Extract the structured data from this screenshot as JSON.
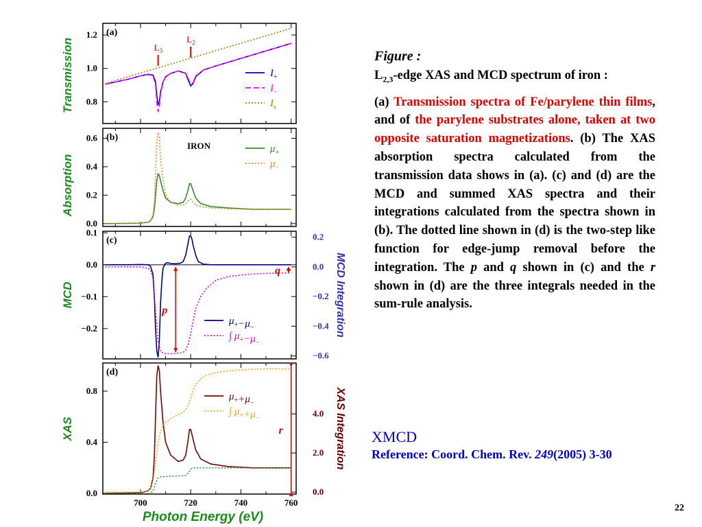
{
  "caption": {
    "figure_label": "Figure :",
    "subtitle_prefix": "L",
    "subtitle_sub": "2,3",
    "subtitle_text": "-edge XAS and MCD spectrum of iron :",
    "body": [
      {
        "text": "(a) ",
        "color": "black"
      },
      {
        "text": "Transmission spectra of Fe/parylene thin films",
        "color": "red"
      },
      {
        "text": ", and of ",
        "color": "black"
      },
      {
        "text": "the parylene substrates alone, taken at two opposite saturation magnetizations",
        "color": "red"
      },
      {
        "text": ". (b) The XAS absorption spectra calculated from the transmission data shows in (a). (c) and (d) are the MCD and summed XAS spectra and their integrations calculated from the spectra shown in (b). The dotted line shown in (d) is the two-step like function for edge-jump removal before the integration. The ",
        "color": "black"
      },
      {
        "text": "p",
        "color": "black",
        "italic": true
      },
      {
        "text": " and ",
        "color": "black"
      },
      {
        "text": "q",
        "color": "black",
        "italic": true
      },
      {
        "text": " shown in (c) and the ",
        "color": "black"
      },
      {
        "text": "r",
        "color": "black",
        "italic": true
      },
      {
        "text": " shown in (d) are the three integrals needed in the sum-rule analysis.",
        "color": "black"
      }
    ]
  },
  "xmcd": {
    "title": "XMCD",
    "ref_prefix": "Reference: Coord. Chem. Rev. ",
    "ref_volume": "249",
    "ref_suffix": "(2005) 3-30"
  },
  "page_number": "22",
  "colors": {
    "axis_label_green": "#1a8c1a",
    "integration_axis_blue": "#3333aa",
    "xas_integration_darkred": "#660000",
    "mu_plus_green": "#2e8b2e",
    "mu_minus_orange": "#ff7f24",
    "mcd_navy": "#000080",
    "mcd_int_magenta": "#dd00dd",
    "xas_darkred": "#7a0000",
    "xas_int_orange": "#ffa010",
    "step_green": "#2e8b57",
    "I_plus_blue": "#0000cc",
    "I_minus_magenta": "#ff00ff",
    "I_s_olive": "#8b8b00",
    "marker_red": "#e00000"
  },
  "chart_data": [
    {
      "panel": "(a)",
      "type": "line",
      "ylabel": "Transmission",
      "xlim": [
        685,
        762
      ],
      "ylim": [
        0.67,
        1.27
      ],
      "yticks": [
        0.8,
        1.0,
        1.2
      ],
      "ytick_labels": [
        "0.8",
        "1.0",
        "1.2"
      ],
      "annotations": [
        {
          "label": "L",
          "sub": "3",
          "x": 707
        },
        {
          "label": "L",
          "sub": "2",
          "x": 720
        }
      ],
      "series": [
        {
          "name": "I+",
          "name_main": "I",
          "name_sub": "+",
          "style": "solid",
          "color_key": "I_plus_blue",
          "x": [
            686,
            695,
            700,
            703,
            705,
            706,
            706.5,
            707,
            707.5,
            708,
            709,
            710,
            712,
            715,
            718,
            719,
            720,
            721,
            722,
            725,
            730,
            740,
            750,
            760
          ],
          "y": [
            0.905,
            0.935,
            0.955,
            0.965,
            0.96,
            0.92,
            0.84,
            0.78,
            0.8,
            0.86,
            0.92,
            0.95,
            0.97,
            0.985,
            0.97,
            0.93,
            0.895,
            0.91,
            0.95,
            0.99,
            1.015,
            1.06,
            1.105,
            1.15
          ]
        },
        {
          "name": "I−",
          "name_main": "I",
          "name_sub": "−",
          "style": "dashed",
          "color_key": "I_minus_magenta",
          "x": [
            686,
            695,
            700,
            703,
            705,
            706,
            706.5,
            707,
            707.5,
            708,
            709,
            710,
            712,
            715,
            718,
            719,
            720,
            721,
            722,
            725,
            730,
            740,
            750,
            760
          ],
          "y": [
            0.905,
            0.935,
            0.955,
            0.963,
            0.955,
            0.9,
            0.8,
            0.74,
            0.77,
            0.85,
            0.92,
            0.95,
            0.97,
            0.985,
            0.972,
            0.94,
            0.905,
            0.915,
            0.955,
            0.99,
            1.015,
            1.06,
            1.105,
            1.15
          ]
        },
        {
          "name": "Is",
          "name_main": "I",
          "name_sub": "s",
          "style": "dotted",
          "color_key": "I_s_olive",
          "x": [
            686,
            760
          ],
          "y": [
            0.91,
            1.24
          ]
        }
      ]
    },
    {
      "panel": "(b)",
      "type": "line",
      "ylabel": "Absorption",
      "inner_label": "IRON",
      "xlim": [
        685,
        762
      ],
      "ylim": [
        -0.02,
        0.67
      ],
      "yticks": [
        0.0,
        0.2,
        0.4,
        0.6
      ],
      "ytick_labels": [
        "0.0",
        "0.2",
        "0.4",
        "0.6"
      ],
      "series": [
        {
          "name": "μ+",
          "name_main": "μ",
          "name_sub": "+",
          "style": "solid",
          "color_key": "mu_plus_green",
          "x": [
            686,
            700,
            703,
            704,
            705,
            705.5,
            706,
            706.5,
            707,
            707.5,
            708,
            709,
            710,
            712,
            715,
            717,
            718,
            719,
            719.5,
            720,
            721,
            722,
            724,
            728,
            735,
            745,
            760
          ],
          "y": [
            0.0,
            0.003,
            0.01,
            0.02,
            0.05,
            0.1,
            0.2,
            0.3,
            0.35,
            0.34,
            0.3,
            0.23,
            0.18,
            0.15,
            0.14,
            0.15,
            0.18,
            0.24,
            0.28,
            0.28,
            0.23,
            0.18,
            0.14,
            0.12,
            0.11,
            0.1,
            0.1
          ]
        },
        {
          "name": "μ−",
          "name_main": "μ",
          "name_sub": "−",
          "style": "dotted",
          "color_key": "mu_minus_orange",
          "x": [
            686,
            700,
            703,
            704,
            705,
            705.5,
            706,
            706.5,
            707,
            707.5,
            708,
            709,
            710,
            712,
            715,
            717,
            718,
            719,
            719.5,
            720,
            721,
            722,
            724,
            728,
            735,
            745,
            760
          ],
          "y": [
            0.0,
            0.003,
            0.01,
            0.02,
            0.06,
            0.15,
            0.35,
            0.58,
            0.64,
            0.6,
            0.45,
            0.3,
            0.2,
            0.15,
            0.13,
            0.13,
            0.14,
            0.16,
            0.17,
            0.17,
            0.15,
            0.13,
            0.12,
            0.11,
            0.105,
            0.1,
            0.1
          ]
        }
      ]
    },
    {
      "panel": "(c)",
      "type": "line",
      "ylabel": "MCD",
      "y2label": "MCD Integration",
      "xlim": [
        685,
        762
      ],
      "ylim": [
        -0.295,
        0.105
      ],
      "yticks": [
        0.1,
        0.0,
        -0.1,
        -0.2
      ],
      "ytick_labels": [
        "0.1",
        "0.0",
        "−0.1",
        "−0.2"
      ],
      "y2lim": [
        -0.62,
        0.24
      ],
      "y2ticks": [
        0.2,
        0.0,
        -0.2,
        -0.4,
        -0.6
      ],
      "y2tick_labels": [
        "0.2",
        "0.0",
        "−0.2",
        "−0.4",
        "−0.6"
      ],
      "markers": [
        {
          "label": "p",
          "x": 714,
          "y2_from": 0.0,
          "y2_to": -0.575
        },
        {
          "label": "q",
          "x": 759,
          "y2_from": 0.0,
          "y2_to": -0.04
        }
      ],
      "series": [
        {
          "name": "μ+−μ−",
          "legend": [
            [
              "μ",
              "+"
            ],
            [
              "−μ",
              "−"
            ]
          ],
          "axis": "left",
          "style": "solid",
          "color_key": "mcd_navy",
          "x": [
            686,
            695,
            700,
            703,
            704,
            705,
            705.5,
            706,
            706.5,
            707,
            707.5,
            708,
            708.5,
            709,
            710,
            711,
            712,
            714,
            716,
            717,
            718,
            719,
            719.5,
            720,
            720.5,
            721,
            722,
            723,
            725,
            728,
            735,
            745,
            760
          ],
          "y": [
            0.0,
            0.0,
            0.001,
            0.0,
            -0.005,
            -0.03,
            -0.1,
            -0.2,
            -0.27,
            -0.29,
            -0.24,
            -0.12,
            -0.05,
            -0.01,
            0.005,
            0.006,
            0.004,
            0.003,
            0.005,
            0.01,
            0.03,
            0.07,
            0.09,
            0.09,
            0.08,
            0.06,
            0.03,
            0.01,
            0.002,
            0.0,
            0.0,
            0.0,
            0.0
          ]
        },
        {
          "name": "∫μ+−μ−",
          "legend": [
            [
              "∫ μ",
              "+"
            ],
            [
              "−μ",
              "−"
            ]
          ],
          "axis": "right",
          "style": "dotted",
          "color_key": "mcd_int_magenta",
          "x": [
            686,
            700,
            703,
            704,
            705,
            706,
            707,
            708,
            709,
            710,
            712,
            714,
            716,
            717,
            718,
            719,
            720,
            721,
            722,
            724,
            726,
            728,
            730,
            735,
            740,
            745,
            750,
            760
          ],
          "y": [
            0.0,
            0.0,
            -0.01,
            -0.02,
            -0.08,
            -0.3,
            -0.5,
            -0.57,
            -0.58,
            -0.585,
            -0.585,
            -0.583,
            -0.58,
            -0.575,
            -0.56,
            -0.52,
            -0.45,
            -0.36,
            -0.28,
            -0.2,
            -0.15,
            -0.12,
            -0.09,
            -0.065,
            -0.055,
            -0.048,
            -0.044,
            -0.04
          ]
        }
      ]
    },
    {
      "panel": "(d)",
      "type": "line",
      "ylabel": "XAS",
      "y2label": "XAS Integration",
      "xlabel": "Photon Energy  (eV)",
      "xlim": [
        685,
        762
      ],
      "xticks": [
        700,
        720,
        740,
        760
      ],
      "xtick_labels": [
        "700",
        "720",
        "740",
        "760"
      ],
      "ylim": [
        -0.005,
        1.02
      ],
      "yticks": [
        0.0,
        0.4,
        0.8
      ],
      "ytick_labels": [
        "0.0",
        "0.4",
        "0.8"
      ],
      "y2lim": [
        -0.1,
        6.6
      ],
      "y2ticks": [
        0.0,
        2.0,
        4.0
      ],
      "y2tick_labels": [
        "0.0",
        "2.0",
        "4.0"
      ],
      "markers": [
        {
          "label": "r",
          "x": 760,
          "y2_from": 0.0,
          "y2_to": 6.4
        }
      ],
      "series": [
        {
          "name": "μ+ + μ−",
          "legend": [
            [
              "μ",
              "+"
            ],
            [
              "+μ",
              "−"
            ]
          ],
          "axis": "left",
          "style": "solid",
          "color_key": "xas_darkred",
          "x": [
            686,
            700,
            703,
            704,
            705,
            705.5,
            706,
            706.5,
            707,
            707.5,
            708,
            709,
            710,
            712,
            715,
            717,
            718,
            719,
            719.5,
            720,
            721,
            722,
            724,
            728,
            735,
            745,
            760
          ],
          "y": [
            0.0,
            0.005,
            0.02,
            0.04,
            0.12,
            0.28,
            0.6,
            0.92,
            1.0,
            0.96,
            0.8,
            0.55,
            0.4,
            0.3,
            0.25,
            0.26,
            0.3,
            0.42,
            0.5,
            0.5,
            0.42,
            0.34,
            0.27,
            0.23,
            0.21,
            0.2,
            0.2
          ]
        },
        {
          "name": "∫μ+ + μ−",
          "legend": [
            [
              "∫ μ",
              "+"
            ],
            [
              "+μ",
              "−"
            ]
          ],
          "axis": "right",
          "style": "dotted",
          "color_key": "xas_int_orange",
          "x": [
            686,
            700,
            703,
            704,
            705,
            706,
            707,
            708,
            709,
            710,
            712,
            714,
            716,
            717,
            718,
            719,
            720,
            721,
            722,
            724,
            726,
            728,
            730,
            735,
            740,
            745,
            750,
            755,
            760
          ],
          "y": [
            0.0,
            0.0,
            0.05,
            0.2,
            0.6,
            1.5,
            2.5,
            3.1,
            3.4,
            3.55,
            3.75,
            3.9,
            4.0,
            4.08,
            4.2,
            4.45,
            4.8,
            5.2,
            5.5,
            5.8,
            5.95,
            6.05,
            6.1,
            6.2,
            6.25,
            6.28,
            6.3,
            6.3,
            6.3
          ]
        },
        {
          "name": "two-step function",
          "axis": "left",
          "style": "dotted",
          "color_key": "step_green",
          "x": [
            686,
            704,
            705,
            706,
            707,
            708,
            718,
            719,
            720,
            721,
            722,
            760
          ],
          "y": [
            0.0,
            0.0,
            0.02,
            0.08,
            0.12,
            0.13,
            0.14,
            0.16,
            0.19,
            0.2,
            0.2,
            0.2
          ]
        }
      ]
    }
  ]
}
